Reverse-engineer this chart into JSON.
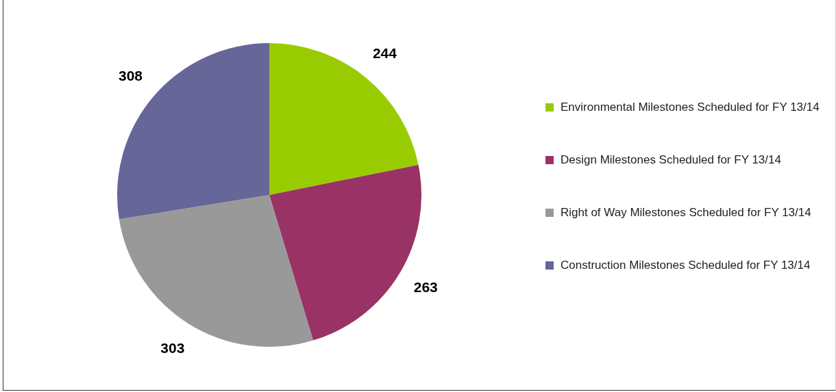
{
  "chart_data": {
    "type": "pie",
    "categories": [
      "Environmental Milestones Scheduled for FY 13/14",
      "Design Milestones Scheduled for FY 13/14",
      "Right of Way Milestones Scheduled for FY 13/14",
      "Construction Milestones Scheduled for FY 13/14"
    ],
    "values": [
      244,
      263,
      303,
      308
    ],
    "colors": [
      "#99cc00",
      "#993366",
      "#999999",
      "#666699"
    ],
    "data_labels": true,
    "legend": "right"
  }
}
